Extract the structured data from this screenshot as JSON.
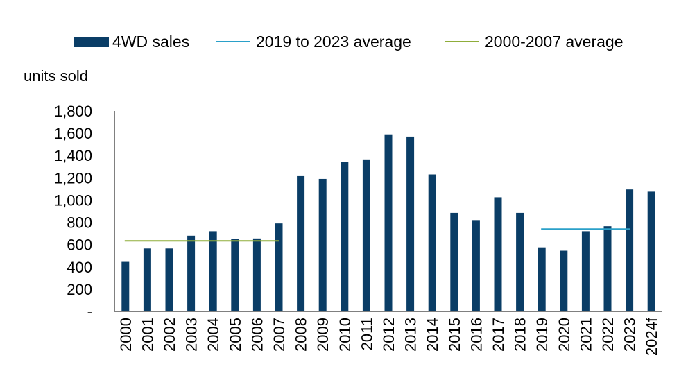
{
  "chart_data": {
    "type": "bar",
    "ylabel": "units sold",
    "ylim": [
      0,
      1800
    ],
    "yticks": [
      0,
      200,
      400,
      600,
      800,
      1000,
      1200,
      1400,
      1600,
      1800
    ],
    "ytick_labels": [
      "-",
      "200",
      "400",
      "600",
      "800",
      "1,000",
      "1,200",
      "1,400",
      "1,600",
      "1,800"
    ],
    "categories": [
      "2000",
      "2001",
      "2002",
      "2003",
      "2004",
      "2005",
      "2006",
      "2007",
      "2008",
      "2009",
      "2010",
      "2011",
      "2012",
      "2013",
      "2014",
      "2015",
      "2016",
      "2017",
      "2018",
      "2019",
      "2020",
      "2021",
      "2022",
      "2023",
      "2024f"
    ],
    "series": [
      {
        "name": "4WD sales",
        "color": "#0a3d66",
        "values": [
          445,
          565,
          565,
          680,
          720,
          650,
          655,
          790,
          1215,
          1190,
          1345,
          1365,
          1590,
          1570,
          1230,
          885,
          820,
          1025,
          885,
          575,
          545,
          720,
          765,
          1095,
          1075
        ]
      }
    ],
    "reference_lines": [
      {
        "name": "2019 to 2023 average",
        "color": "#2aa0c9",
        "value": 740,
        "from": "2019",
        "to": "2023"
      },
      {
        "name": "2000-2007 average",
        "color": "#8fad3a",
        "value": 634,
        "from": "2000",
        "to": "2007"
      }
    ],
    "legend": {
      "placement": "top",
      "entries": [
        {
          "label": "4WD sales",
          "kind": "bar",
          "color": "#0a3d66"
        },
        {
          "label": "2019 to 2023 average",
          "kind": "line",
          "color": "#2aa0c9"
        },
        {
          "label": "2000-2007 average",
          "kind": "line",
          "color": "#8fad3a"
        }
      ]
    },
    "grid": false
  }
}
